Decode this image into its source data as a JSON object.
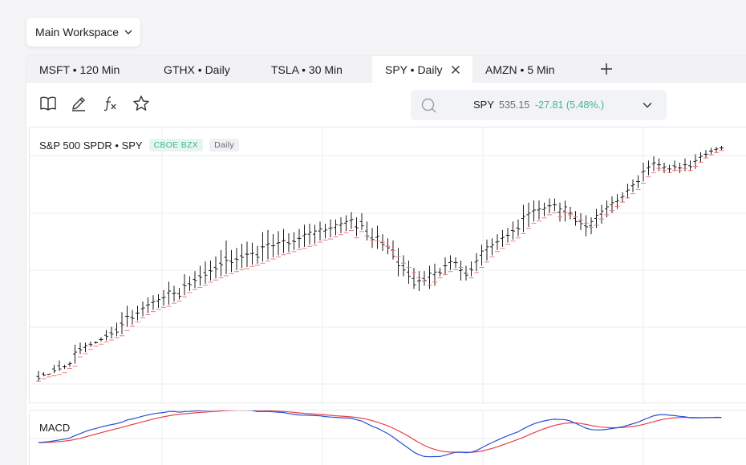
{
  "workspace": {
    "label": "Main Workspace"
  },
  "tabs": [
    {
      "label": "MSFT • 120 Min",
      "active": false
    },
    {
      "label": "GTHX • Daily",
      "active": false
    },
    {
      "label": "TSLA • 30 Min",
      "active": false
    },
    {
      "label": "SPY • Daily",
      "active": true
    },
    {
      "label": "AMZN • 5 Min",
      "active": false
    }
  ],
  "toolbar": {
    "icons": [
      "book-icon",
      "pencil-icon",
      "function-icon",
      "star-icon"
    ]
  },
  "symbol_search": {
    "symbol": "SPY",
    "price": "535.15",
    "change": "-27.81 (5.48%.)",
    "change_color": "#3bb889"
  },
  "chart": {
    "title": "S&P 500 SPDR • SPY",
    "exchange": "CBOE BZX",
    "interval": "Daily"
  },
  "macd": {
    "label": "MACD"
  },
  "colors": {
    "accent_green": "#3bb889",
    "sar_red": "#f0787c",
    "sar_green": "#4cc79a",
    "macd_line": "#2b4fd6",
    "signal_line": "#e8404a"
  },
  "chart_data": {
    "type": "ohlc",
    "bars": [
      [
        462,
        460,
        470,
        463
      ],
      [
        464,
        465,
        469,
        466
      ],
      [
        466,
        466,
        467,
        467
      ],
      [
        467,
        468,
        476,
        470
      ],
      [
        468,
        470,
        480,
        472
      ],
      [
        470,
        472,
        476,
        474
      ],
      [
        474,
        474,
        479,
        477
      ],
      [
        476,
        477,
        495,
        488
      ],
      [
        485,
        486,
        497,
        490
      ],
      [
        488,
        488,
        497,
        494
      ],
      [
        492,
        493,
        498,
        495
      ],
      [
        495,
        496,
        498,
        497
      ],
      [
        497,
        498,
        502,
        500
      ],
      [
        499,
        499,
        509,
        503
      ],
      [
        501,
        501,
        512,
        505
      ],
      [
        503,
        503,
        516,
        507
      ],
      [
        505,
        505,
        526,
        514
      ],
      [
        510,
        512,
        532,
        522
      ],
      [
        514,
        514,
        528,
        520
      ],
      [
        518,
        518,
        532,
        525
      ],
      [
        522,
        522,
        536,
        530
      ],
      [
        525,
        525,
        540,
        533
      ],
      [
        528,
        528,
        542,
        536
      ],
      [
        530,
        530,
        543,
        538
      ],
      [
        532,
        532,
        547,
        540
      ],
      [
        533,
        533,
        555,
        546
      ],
      [
        536,
        536,
        551,
        544
      ],
      [
        538,
        538,
        549,
        541
      ],
      [
        542,
        542,
        562,
        551
      ],
      [
        546,
        546,
        560,
        552
      ],
      [
        549,
        549,
        565,
        556
      ],
      [
        551,
        551,
        570,
        559
      ],
      [
        553,
        553,
        574,
        561
      ],
      [
        556,
        556,
        575,
        565
      ],
      [
        558,
        558,
        579,
        567
      ],
      [
        560,
        560,
        585,
        571
      ],
      [
        562,
        562,
        594,
        575
      ],
      [
        564,
        564,
        585,
        573
      ],
      [
        566,
        566,
        587,
        576
      ],
      [
        568,
        568,
        591,
        578
      ],
      [
        569,
        569,
        593,
        581
      ],
      [
        571,
        571,
        592,
        582
      ],
      [
        572,
        572,
        589,
        578
      ],
      [
        574,
        574,
        602,
        588
      ],
      [
        576,
        576,
        604,
        591
      ],
      [
        578,
        578,
        600,
        589
      ],
      [
        580,
        580,
        603,
        592
      ],
      [
        582,
        582,
        605,
        594
      ],
      [
        583,
        583,
        601,
        591
      ],
      [
        585,
        585,
        602,
        593
      ],
      [
        587,
        587,
        605,
        596
      ],
      [
        588,
        588,
        609,
        600
      ],
      [
        590,
        590,
        610,
        602
      ],
      [
        591,
        591,
        609,
        603
      ],
      [
        594,
        594,
        612,
        605
      ],
      [
        596,
        596,
        610,
        604
      ],
      [
        597,
        597,
        614,
        606
      ],
      [
        599,
        599,
        614,
        609
      ],
      [
        601,
        601,
        616,
        610
      ],
      [
        603,
        603,
        618,
        612
      ],
      [
        605,
        605,
        621,
        614
      ],
      [
        598,
        598,
        616,
        606
      ],
      [
        604,
        604,
        620,
        608
      ],
      [
        600,
        594,
        612,
        598
      ],
      [
        596,
        587,
        606,
        595
      ],
      [
        595,
        586,
        608,
        598
      ],
      [
        594,
        584,
        600,
        590
      ],
      [
        590,
        581,
        596,
        587
      ],
      [
        586,
        576,
        594,
        579
      ],
      [
        580,
        560,
        587,
        570
      ],
      [
        574,
        560,
        580,
        566
      ],
      [
        570,
        553,
        575,
        560
      ],
      [
        565,
        548,
        568,
        552
      ],
      [
        560,
        546,
        565,
        556
      ],
      [
        557,
        551,
        565,
        556
      ],
      [
        553,
        548,
        570,
        563
      ],
      [
        556,
        551,
        572,
        564
      ],
      [
        560,
        560,
        568,
        563
      ],
      [
        563,
        562,
        578,
        570
      ],
      [
        566,
        566,
        580,
        574
      ],
      [
        568,
        568,
        578,
        573
      ],
      [
        570,
        556,
        575,
        566
      ],
      [
        564,
        556,
        570,
        561
      ],
      [
        560,
        560,
        574,
        566
      ],
      [
        565,
        565,
        582,
        575
      ],
      [
        570,
        570,
        590,
        584
      ],
      [
        575,
        575,
        595,
        588
      ],
      [
        580,
        580,
        596,
        590
      ],
      [
        585,
        585,
        600,
        593
      ],
      [
        588,
        588,
        604,
        597
      ],
      [
        592,
        592,
        606,
        599
      ],
      [
        595,
        595,
        612,
        603
      ],
      [
        598,
        598,
        614,
        605
      ],
      [
        602,
        602,
        628,
        617
      ],
      [
        607,
        607,
        630,
        620
      ],
      [
        612,
        612,
        632,
        623
      ],
      [
        614,
        614,
        632,
        624
      ],
      [
        617,
        617,
        630,
        625
      ],
      [
        620,
        620,
        634,
        627
      ],
      [
        622,
        622,
        634,
        628
      ],
      [
        618,
        612,
        630,
        624
      ],
      [
        622,
        612,
        632,
        626
      ],
      [
        620,
        614,
        626,
        620
      ],
      [
        618,
        608,
        622,
        612
      ],
      [
        615,
        604,
        620,
        610
      ],
      [
        612,
        598,
        618,
        607
      ],
      [
        608,
        600,
        616,
        612
      ],
      [
        610,
        606,
        624,
        618
      ],
      [
        616,
        610,
        628,
        622
      ],
      [
        620,
        616,
        632,
        626
      ],
      [
        624,
        620,
        636,
        630
      ],
      [
        628,
        624,
        638,
        632
      ],
      [
        632,
        630,
        640,
        636
      ],
      [
        636,
        634,
        648,
        642
      ],
      [
        640,
        640,
        652,
        647
      ],
      [
        644,
        644,
        656,
        650
      ],
      [
        650,
        650,
        668,
        660
      ],
      [
        656,
        656,
        670,
        664
      ],
      [
        660,
        660,
        674,
        668
      ],
      [
        664,
        660,
        672,
        666
      ],
      [
        662,
        658,
        668,
        664
      ],
      [
        660,
        658,
        666,
        662
      ],
      [
        662,
        660,
        670,
        664
      ],
      [
        662,
        658,
        668,
        663
      ],
      [
        664,
        660,
        672,
        666
      ],
      [
        662,
        660,
        670,
        664
      ],
      [
        666,
        662,
        676,
        670
      ],
      [
        670,
        668,
        678,
        674
      ],
      [
        674,
        672,
        680,
        676
      ],
      [
        677,
        676,
        682,
        679
      ],
      [
        679,
        678,
        683,
        681
      ],
      [
        681,
        680,
        684,
        682
      ]
    ]
  }
}
